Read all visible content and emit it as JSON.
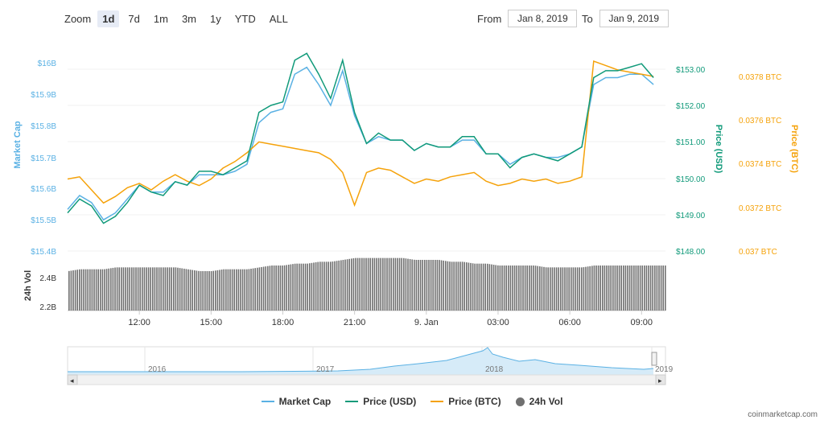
{
  "toolbar": {
    "zoom_label": "Zoom",
    "zoom_buttons": [
      "1d",
      "7d",
      "1m",
      "3m",
      "1y",
      "YTD",
      "ALL"
    ],
    "active_zoom": "1d",
    "from_label": "From",
    "from_value": "Jan 8, 2019",
    "to_label": "To",
    "to_value": "Jan 9, 2019"
  },
  "colors": {
    "market_cap": "#5ab1e4",
    "price_usd": "#119a7a",
    "price_btc": "#f5a20a",
    "volume": "#707070"
  },
  "legend": [
    {
      "label": "Market Cap",
      "color": "#5ab1e4",
      "kind": "line"
    },
    {
      "label": "Price (USD)",
      "color": "#119a7a",
      "kind": "line"
    },
    {
      "label": "Price (BTC)",
      "color": "#f5a20a",
      "kind": "line"
    },
    {
      "label": "24h Vol",
      "color": "#707070",
      "kind": "dot"
    }
  ],
  "credit": "coinmarketcap.com",
  "chart_data": {
    "type": "line",
    "x_ticks": [
      "12:00",
      "15:00",
      "18:00",
      "21:00",
      "9. Jan",
      "03:00",
      "06:00",
      "09:00"
    ],
    "left_axis": {
      "label": "Market Cap",
      "ticks": [
        "$16B",
        "$15.9B",
        "$15.8B",
        "$15.7B",
        "$15.6B",
        "$15.5B",
        "$15.4B"
      ]
    },
    "usd_axis": {
      "label": "Price (USD)",
      "ticks": [
        "$153.00",
        "$152.00",
        "$151.00",
        "$150.00",
        "$149.00",
        "$148.00"
      ],
      "range": [
        148,
        153.8
      ]
    },
    "btc_axis": {
      "label": "Price (BTC)",
      "ticks": [
        "0.0378 BTC",
        "0.0376 BTC",
        "0.0374 BTC",
        "0.0372 BTC",
        "0.037 BTC"
      ]
    },
    "volume_axis": {
      "label": "24h Vol",
      "ticks": [
        "2.4B",
        "2.2B"
      ],
      "range": [
        2.2,
        2.5
      ]
    },
    "series": [
      {
        "name": "Price (USD)",
        "x_hours": [
          9.0,
          9.5,
          10.0,
          10.5,
          11.0,
          11.5,
          12.0,
          12.5,
          13.0,
          13.5,
          14.0,
          14.5,
          15.0,
          15.5,
          16.0,
          16.5,
          17.0,
          17.5,
          18.0,
          18.5,
          19.0,
          19.5,
          20.0,
          20.5,
          21.0,
          21.5,
          22.0,
          22.5,
          23.0,
          23.5,
          24.0,
          24.5,
          25.0,
          25.5,
          26.0,
          26.5,
          27.0,
          27.5,
          28.0,
          28.5,
          29.0,
          29.5,
          30.0,
          30.5,
          31.0,
          31.5,
          32.0,
          32.5,
          33.0,
          33.5
        ],
        "values": [
          149.1,
          149.5,
          149.3,
          148.8,
          149.0,
          149.4,
          149.9,
          149.7,
          149.6,
          150.0,
          149.9,
          150.3,
          150.3,
          150.2,
          150.4,
          150.6,
          152.0,
          152.2,
          152.3,
          153.5,
          153.7,
          153.1,
          152.4,
          153.5,
          152.0,
          151.1,
          151.4,
          151.2,
          151.2,
          150.9,
          151.1,
          151.0,
          151.0,
          151.3,
          151.3,
          150.8,
          150.8,
          150.4,
          150.7,
          150.8,
          150.7,
          150.6,
          150.8,
          151.0,
          153.0,
          153.2,
          153.2,
          153.3,
          153.4,
          153.0
        ]
      },
      {
        "name": "Market Cap",
        "x_hours": [
          9.0,
          9.5,
          10.0,
          10.5,
          11.0,
          11.5,
          12.0,
          12.5,
          13.0,
          13.5,
          14.0,
          14.5,
          15.0,
          15.5,
          16.0,
          16.5,
          17.0,
          17.5,
          18.0,
          18.5,
          19.0,
          19.5,
          20.0,
          20.5,
          21.0,
          21.5,
          22.0,
          22.5,
          23.0,
          23.5,
          24.0,
          24.5,
          25.0,
          25.5,
          26.0,
          26.5,
          27.0,
          27.5,
          28.0,
          28.5,
          29.0,
          29.5,
          30.0,
          30.5,
          31.0,
          31.5,
          32.0,
          32.5,
          33.0,
          33.5
        ],
        "values_usd_scale": [
          149.2,
          149.6,
          149.4,
          148.9,
          149.1,
          149.5,
          149.9,
          149.7,
          149.7,
          150.0,
          149.9,
          150.2,
          150.2,
          150.2,
          150.3,
          150.5,
          151.7,
          152.0,
          152.1,
          153.1,
          153.3,
          152.8,
          152.2,
          153.2,
          151.9,
          151.1,
          151.3,
          151.2,
          151.2,
          150.9,
          151.1,
          151.0,
          151.0,
          151.2,
          151.2,
          150.8,
          150.8,
          150.5,
          150.7,
          150.8,
          150.7,
          150.7,
          150.8,
          151.0,
          152.8,
          153.0,
          153.0,
          153.1,
          153.1,
          152.8
        ]
      },
      {
        "name": "Price (BTC)",
        "x_hours": [
          9.0,
          9.5,
          10.0,
          10.5,
          11.0,
          11.5,
          12.0,
          12.5,
          13.0,
          13.5,
          14.0,
          14.5,
          15.0,
          15.5,
          16.0,
          16.5,
          17.0,
          17.5,
          18.0,
          18.5,
          19.0,
          19.5,
          20.0,
          20.5,
          21.0,
          21.5,
          22.0,
          22.5,
          23.0,
          23.5,
          24.0,
          24.5,
          25.0,
          25.5,
          26.0,
          26.5,
          27.0,
          27.5,
          28.0,
          28.5,
          29.0,
          29.5,
          30.0,
          30.5,
          31.0,
          31.5,
          32.0,
          32.5,
          33.0,
          33.5
        ],
        "values": [
          0.03733,
          0.03734,
          0.03728,
          0.03722,
          0.03725,
          0.03729,
          0.03731,
          0.03728,
          0.03732,
          0.03735,
          0.03732,
          0.0373,
          0.03733,
          0.03738,
          0.03741,
          0.03745,
          0.0375,
          0.03749,
          0.03748,
          0.03747,
          0.03746,
          0.03745,
          0.03742,
          0.03736,
          0.03721,
          0.03736,
          0.03738,
          0.03737,
          0.03734,
          0.03731,
          0.03733,
          0.03732,
          0.03734,
          0.03735,
          0.03736,
          0.03732,
          0.0373,
          0.03731,
          0.03733,
          0.03732,
          0.03733,
          0.03731,
          0.03732,
          0.03734,
          0.03787,
          0.03785,
          0.03783,
          0.03782,
          0.03781,
          0.0378
        ]
      },
      {
        "name": "24h Vol",
        "type": "bar",
        "x_hours": [
          9.0,
          9.5,
          10.0,
          10.5,
          11.0,
          11.5,
          12.0,
          12.5,
          13.0,
          13.5,
          14.0,
          14.5,
          15.0,
          15.5,
          16.0,
          16.5,
          17.0,
          17.5,
          18.0,
          18.5,
          19.0,
          19.5,
          20.0,
          20.5,
          21.0,
          21.5,
          22.0,
          22.5,
          23.0,
          23.5,
          24.0,
          24.5,
          25.0,
          25.5,
          26.0,
          26.5,
          27.0,
          27.5,
          28.0,
          28.5,
          29.0,
          29.5,
          30.0,
          30.5,
          31.0,
          31.5,
          32.0,
          32.5,
          33.0,
          33.5
        ],
        "values": [
          2.41,
          2.42,
          2.42,
          2.42,
          2.43,
          2.43,
          2.43,
          2.43,
          2.43,
          2.43,
          2.42,
          2.41,
          2.41,
          2.42,
          2.42,
          2.42,
          2.43,
          2.44,
          2.44,
          2.45,
          2.45,
          2.46,
          2.46,
          2.47,
          2.48,
          2.48,
          2.48,
          2.48,
          2.48,
          2.47,
          2.47,
          2.47,
          2.46,
          2.46,
          2.45,
          2.45,
          2.44,
          2.44,
          2.44,
          2.44,
          2.43,
          2.43,
          2.43,
          2.43,
          2.44,
          2.44,
          2.44,
          2.44,
          2.44,
          2.44
        ]
      }
    ],
    "navigator": {
      "year_labels": [
        "2016",
        "2017",
        "2018",
        "2019"
      ]
    }
  }
}
